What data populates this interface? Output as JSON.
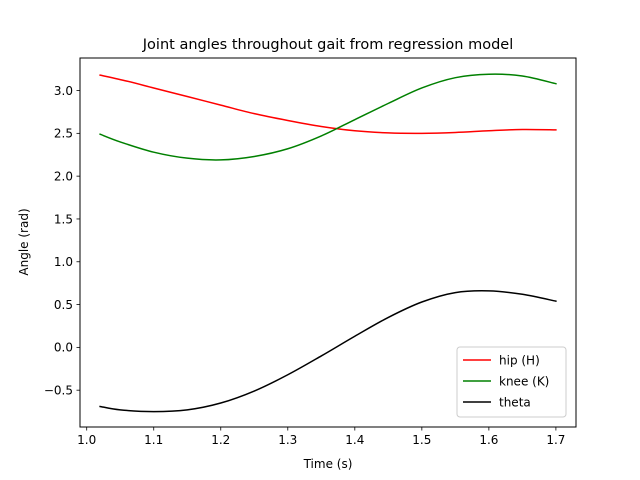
{
  "chart_data": {
    "type": "line",
    "title": "Joint angles throughout gait from regression model",
    "xlabel": "Time (s)",
    "ylabel": "Angle (rad)",
    "xlim": [
      0.99,
      1.73
    ],
    "ylim": [
      -0.93,
      3.38
    ],
    "xticks": [
      1.0,
      1.1,
      1.2,
      1.3,
      1.4,
      1.5,
      1.6,
      1.7
    ],
    "xtick_labels": [
      "1.0",
      "1.1",
      "1.2",
      "1.3",
      "1.4",
      "1.5",
      "1.6",
      "1.7"
    ],
    "yticks": [
      -0.5,
      0.0,
      0.5,
      1.0,
      1.5,
      2.0,
      2.5,
      3.0
    ],
    "ytick_labels": [
      "−0.5",
      "0.0",
      "0.5",
      "1.0",
      "1.5",
      "2.0",
      "2.5",
      "3.0"
    ],
    "grid": false,
    "legend_position": "bottom-right",
    "series": [
      {
        "name": "hip (H)",
        "color": "#ff0000",
        "x": [
          1.02,
          1.06,
          1.1,
          1.15,
          1.2,
          1.25,
          1.3,
          1.35,
          1.4,
          1.45,
          1.5,
          1.55,
          1.6,
          1.65,
          1.7
        ],
        "y": [
          3.18,
          3.11,
          3.03,
          2.93,
          2.83,
          2.73,
          2.65,
          2.58,
          2.53,
          2.505,
          2.5,
          2.51,
          2.53,
          2.545,
          2.54
        ]
      },
      {
        "name": "knee (K)",
        "color": "#008000",
        "x": [
          1.02,
          1.05,
          1.1,
          1.15,
          1.2,
          1.25,
          1.3,
          1.35,
          1.4,
          1.45,
          1.5,
          1.55,
          1.6,
          1.65,
          1.7
        ],
        "y": [
          2.49,
          2.4,
          2.28,
          2.21,
          2.19,
          2.23,
          2.32,
          2.47,
          2.66,
          2.85,
          3.03,
          3.15,
          3.19,
          3.17,
          3.08
        ]
      },
      {
        "name": "theta",
        "color": "#000000",
        "x": [
          1.02,
          1.05,
          1.1,
          1.15,
          1.2,
          1.25,
          1.3,
          1.35,
          1.4,
          1.45,
          1.5,
          1.55,
          1.6,
          1.65,
          1.7
        ],
        "y": [
          -0.69,
          -0.73,
          -0.75,
          -0.73,
          -0.65,
          -0.51,
          -0.32,
          -0.1,
          0.13,
          0.35,
          0.53,
          0.64,
          0.66,
          0.62,
          0.54
        ]
      }
    ]
  }
}
